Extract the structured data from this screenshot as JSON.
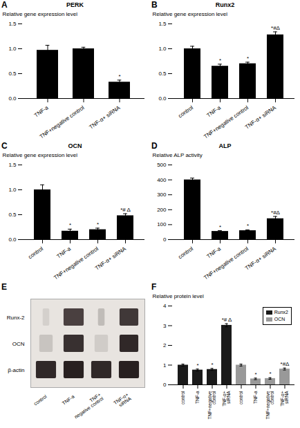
{
  "chart_data": [
    {
      "type": "bar",
      "panel_label": "A",
      "title": "PERK",
      "categories": [
        "TNF-a",
        "TNF+negative control",
        "TNF-α+ siRNA"
      ],
      "values": [
        0.97,
        1.0,
        0.33
      ],
      "errors": [
        0.1,
        0.03,
        0.04
      ],
      "annotations": [
        null,
        null,
        "*"
      ],
      "ylabel": "Relative gene expression level",
      "ylim": [
        0,
        1.5
      ],
      "yticks": [
        {
          "value": 0,
          "label": "0.0"
        },
        0.5,
        {
          "value": 1,
          "label": "1.0"
        },
        1.5
      ]
    },
    {
      "type": "bar",
      "panel_label": "B",
      "title": "Runx2",
      "categories": [
        "control",
        "TNF-a",
        "TNF+negative control",
        "TNF-α+ siRNA"
      ],
      "values": [
        1.0,
        0.65,
        0.7,
        1.28
      ],
      "errors": [
        0.05,
        0.04,
        0.03,
        0.06
      ],
      "annotations": [
        null,
        "*",
        "*",
        "*#Δ"
      ],
      "ylabel": "Relative gene expression level",
      "ylim": [
        0,
        1.5
      ],
      "yticks": [
        {
          "value": 0,
          "label": "0.0"
        },
        0.5,
        {
          "value": 1,
          "label": "1.0"
        },
        1.5
      ]
    },
    {
      "type": "bar",
      "panel_label": "C",
      "title": "OCN",
      "categories": [
        "control",
        "TNF-a",
        "TNF+negative control",
        "TNF-α+ siRNA"
      ],
      "values": [
        1.0,
        0.17,
        0.2,
        0.48
      ],
      "errors": [
        0.1,
        0.04,
        0.03,
        0.04
      ],
      "annotations": [
        null,
        "*",
        "*",
        "*# Δ"
      ],
      "ylabel": "Relative gene expression level",
      "ylim": [
        0,
        1.5
      ],
      "yticks": [
        {
          "value": 0,
          "label": "0.0"
        },
        0.5,
        {
          "value": 1,
          "label": "1.0"
        },
        1.5
      ]
    },
    {
      "type": "bar",
      "panel_label": "D",
      "title": "ALP",
      "categories": [
        "control",
        "TNF-a",
        "TNF+negative control",
        "TNF-α+ siRNA"
      ],
      "values": [
        400,
        55,
        60,
        140
      ],
      "errors": [
        12,
        5,
        5,
        15
      ],
      "annotations": [
        null,
        "*",
        "*",
        "*#Δ"
      ],
      "ylabel": "Relative ALP activity",
      "ylim": [
        0,
        500
      ],
      "yticks": [
        0,
        100,
        200,
        300,
        400,
        500
      ]
    },
    {
      "type": "blot",
      "panel_label": "E",
      "rows": [
        "Runx-2",
        "OCN",
        "β-actin"
      ],
      "categories": [
        "control",
        "TNF-a",
        "TNF+\nnegative control",
        "TNF-α+\n siRNA"
      ],
      "colors": [
        [
          "#d4d0cc",
          "#4a4040",
          "#c0bcb8",
          "#403838"
        ],
        [
          "#c8c4c0",
          "#383030",
          "#d0ccc8",
          "#302828"
        ],
        [
          "#302828",
          "#282020",
          "#302828",
          "#282020"
        ]
      ],
      "band_widths": [
        [
          0.05,
          0.15,
          0.05,
          0.14
        ],
        [
          0.1,
          0.15,
          0.1,
          0.14
        ],
        [
          0.15,
          0.15,
          0.15,
          0.15
        ]
      ],
      "color": "#e8e4e0"
    },
    {
      "type": "bar",
      "panel_label": "F",
      "categories": [
        "control",
        "TNF-a",
        "TNF+negative\ncontrol",
        "TNF-α+\nsiRNA",
        "control",
        "TNF-a",
        "TNF+negative\ncontrol",
        "TNF-α+\nsiRNA"
      ],
      "series": [
        {
          "name": "Runx2",
          "color": "#1a1a1a",
          "values": [
            1.0,
            0.75,
            0.78,
            3.02,
            null,
            null,
            null,
            null
          ],
          "errors": [
            0.05,
            0.05,
            0.05,
            0.08,
            null,
            null,
            null,
            null
          ],
          "annotations": [
            null,
            "*",
            "*",
            "*# Δ",
            null,
            null,
            null,
            null
          ]
        },
        {
          "name": "OCN",
          "color": "#999999",
          "values": [
            null,
            null,
            null,
            null,
            1.0,
            0.3,
            0.32,
            0.8
          ],
          "errors": [
            null,
            null,
            null,
            null,
            0.05,
            0.04,
            0.04,
            0.05
          ],
          "annotations": [
            null,
            null,
            null,
            null,
            null,
            "*",
            "*",
            "*#Δ"
          ]
        }
      ],
      "ylabel": "Relative protein level",
      "ylim": [
        0,
        4
      ],
      "yticks": [
        0,
        1,
        2,
        3,
        4
      ],
      "legend": "upper right"
    }
  ]
}
